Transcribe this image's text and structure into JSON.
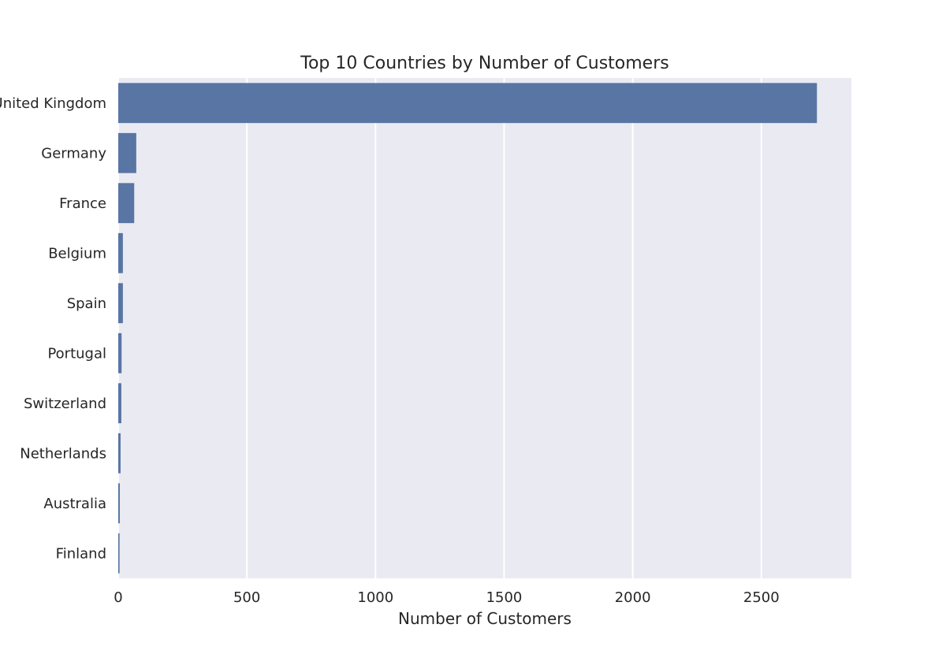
{
  "chart_data": {
    "type": "bar",
    "orientation": "horizontal",
    "title": "Top 10 Countries by Number of Customers",
    "xlabel": "Number of Customers",
    "ylabel": "",
    "categories": [
      "United Kingdom",
      "Germany",
      "France",
      "Belgium",
      "Spain",
      "Portugal",
      "Switzerland",
      "Netherlands",
      "Australia",
      "Finland"
    ],
    "values": [
      2716,
      70,
      62,
      18,
      18,
      13,
      12,
      9,
      6,
      5
    ],
    "xlim": [
      0,
      2850
    ],
    "xticks": [
      0,
      500,
      1000,
      1500,
      2000,
      2500
    ],
    "grid": true,
    "colors": {
      "bar": "#5875a4",
      "plot_background": "#eaeaf2",
      "grid": "#ffffff",
      "text": "#262626"
    }
  }
}
